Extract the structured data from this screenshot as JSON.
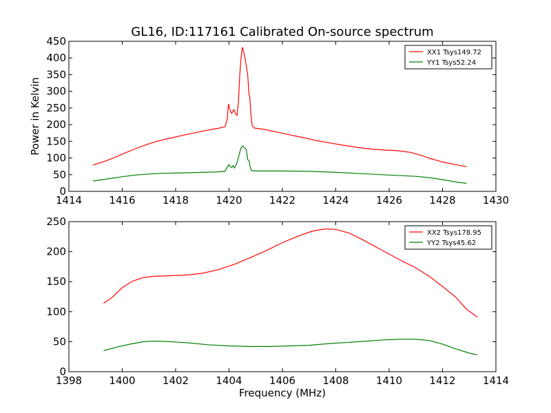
{
  "figure": {
    "title": "GL16, ID:117161 Calibrated On-source spectrum"
  },
  "chart_data": [
    {
      "type": "line",
      "title": "GL16, ID:117161 Calibrated On-source spectrum",
      "xlabel": "",
      "ylabel": "Power in Kelvin",
      "xlim": [
        1414,
        1430
      ],
      "ylim": [
        0,
        450
      ],
      "xticks": [
        1414,
        1416,
        1418,
        1420,
        1422,
        1424,
        1426,
        1428,
        1430
      ],
      "yticks": [
        0,
        50,
        100,
        150,
        200,
        250,
        300,
        350,
        400,
        450
      ],
      "legend_placement": "top-right",
      "series": [
        {
          "name": "XX1 Tsys149.72",
          "color": "#ff0000",
          "points": [
            [
              1414.9,
              79
            ],
            [
              1415.3,
              89
            ],
            [
              1415.7,
              101
            ],
            [
              1416.1,
              115
            ],
            [
              1416.5,
              128
            ],
            [
              1416.9,
              140
            ],
            [
              1417.3,
              150
            ],
            [
              1417.7,
              158
            ],
            [
              1418.1,
              165
            ],
            [
              1418.5,
              172
            ],
            [
              1418.9,
              179
            ],
            [
              1419.3,
              185
            ],
            [
              1419.6,
              189
            ],
            [
              1419.85,
              194
            ],
            [
              1419.93,
              215
            ],
            [
              1419.98,
              262
            ],
            [
              1420.03,
              245
            ],
            [
              1420.1,
              234
            ],
            [
              1420.18,
              245
            ],
            [
              1420.24,
              233
            ],
            [
              1420.3,
              228
            ],
            [
              1420.35,
              265
            ],
            [
              1420.4,
              345
            ],
            [
              1420.45,
              398
            ],
            [
              1420.5,
              432
            ],
            [
              1420.55,
              418
            ],
            [
              1420.6,
              400
            ],
            [
              1420.65,
              375
            ],
            [
              1420.7,
              350
            ],
            [
              1420.75,
              290
            ],
            [
              1420.78,
              282
            ],
            [
              1420.82,
              230
            ],
            [
              1420.87,
              197
            ],
            [
              1420.95,
              190
            ],
            [
              1421.3,
              186
            ],
            [
              1421.8,
              178
            ],
            [
              1422.3,
              169
            ],
            [
              1422.8,
              161
            ],
            [
              1423.3,
              152
            ],
            [
              1423.8,
              145
            ],
            [
              1424.3,
              138
            ],
            [
              1424.8,
              132
            ],
            [
              1425.3,
              127
            ],
            [
              1425.8,
              124
            ],
            [
              1426.3,
              122
            ],
            [
              1426.8,
              117
            ],
            [
              1427.2,
              108
            ],
            [
              1427.6,
              97
            ],
            [
              1428.0,
              88
            ],
            [
              1428.5,
              80
            ],
            [
              1428.9,
              74
            ]
          ]
        },
        {
          "name": "YY1 Tsys52.24",
          "color": "#008000",
          "points": [
            [
              1414.9,
              31
            ],
            [
              1415.5,
              38
            ],
            [
              1416.0,
              44
            ],
            [
              1416.5,
              49
            ],
            [
              1417.0,
              52
            ],
            [
              1417.5,
              54
            ],
            [
              1418.0,
              55
            ],
            [
              1418.5,
              56
            ],
            [
              1419.0,
              57
            ],
            [
              1419.5,
              58
            ],
            [
              1419.85,
              60
            ],
            [
              1419.95,
              75
            ],
            [
              1420.0,
              80
            ],
            [
              1420.05,
              74
            ],
            [
              1420.1,
              72
            ],
            [
              1420.15,
              77
            ],
            [
              1420.2,
              70
            ],
            [
              1420.3,
              85
            ],
            [
              1420.38,
              110
            ],
            [
              1420.45,
              130
            ],
            [
              1420.5,
              136
            ],
            [
              1420.55,
              133
            ],
            [
              1420.65,
              125
            ],
            [
              1420.7,
              95
            ],
            [
              1420.75,
              92
            ],
            [
              1420.8,
              70
            ],
            [
              1420.85,
              62
            ],
            [
              1421.0,
              61
            ],
            [
              1422.0,
              61
            ],
            [
              1423.0,
              60
            ],
            [
              1424.0,
              57
            ],
            [
              1425.0,
              53
            ],
            [
              1426.0,
              49
            ],
            [
              1427.0,
              45
            ],
            [
              1427.5,
              41
            ],
            [
              1428.0,
              35
            ],
            [
              1428.5,
              28
            ],
            [
              1428.9,
              24
            ]
          ]
        }
      ]
    },
    {
      "type": "line",
      "title": "",
      "xlabel": "Frequency (MHz)",
      "ylabel": "",
      "xlim": [
        1398,
        1414
      ],
      "ylim": [
        0,
        250
      ],
      "xticks": [
        1398,
        1400,
        1402,
        1404,
        1406,
        1408,
        1410,
        1412,
        1414
      ],
      "yticks": [
        0,
        50,
        100,
        150,
        200,
        250
      ],
      "legend_placement": "top-right",
      "series": [
        {
          "name": "XX2 Tsys178.95",
          "color": "#ff0000",
          "points": [
            [
              1399.3,
              114
            ],
            [
              1399.6,
              123
            ],
            [
              1400.0,
              140
            ],
            [
              1400.4,
              151
            ],
            [
              1400.8,
              157
            ],
            [
              1401.2,
              159
            ],
            [
              1401.8,
              160
            ],
            [
              1402.4,
              161
            ],
            [
              1403.0,
              164
            ],
            [
              1403.6,
              170
            ],
            [
              1404.2,
              179
            ],
            [
              1404.8,
              190
            ],
            [
              1405.4,
              202
            ],
            [
              1406.0,
              215
            ],
            [
              1406.6,
              226
            ],
            [
              1407.1,
              234
            ],
            [
              1407.6,
              238
            ],
            [
              1408.0,
              237
            ],
            [
              1408.5,
              231
            ],
            [
              1409.0,
              220
            ],
            [
              1409.5,
              208
            ],
            [
              1410.0,
              196
            ],
            [
              1410.5,
              184
            ],
            [
              1411.0,
              173
            ],
            [
              1411.5,
              159
            ],
            [
              1412.0,
              142
            ],
            [
              1412.5,
              124
            ],
            [
              1412.9,
              104
            ],
            [
              1413.3,
              91
            ]
          ]
        },
        {
          "name": "YY2 Tsys45.62",
          "color": "#008000",
          "points": [
            [
              1399.3,
              35
            ],
            [
              1399.8,
              41
            ],
            [
              1400.3,
              46
            ],
            [
              1400.8,
              50
            ],
            [
              1401.2,
              51
            ],
            [
              1401.8,
              50
            ],
            [
              1402.5,
              48
            ],
            [
              1403.2,
              45
            ],
            [
              1404.0,
              43
            ],
            [
              1404.8,
              42
            ],
            [
              1405.5,
              42
            ],
            [
              1406.3,
              43
            ],
            [
              1407.0,
              44
            ],
            [
              1407.8,
              47
            ],
            [
              1408.5,
              49
            ],
            [
              1409.2,
              51
            ],
            [
              1409.8,
              53
            ],
            [
              1410.4,
              54
            ],
            [
              1411.0,
              54
            ],
            [
              1411.5,
              52
            ],
            [
              1412.0,
              46
            ],
            [
              1412.5,
              38
            ],
            [
              1413.0,
              31
            ],
            [
              1413.3,
              28
            ]
          ]
        }
      ]
    }
  ]
}
